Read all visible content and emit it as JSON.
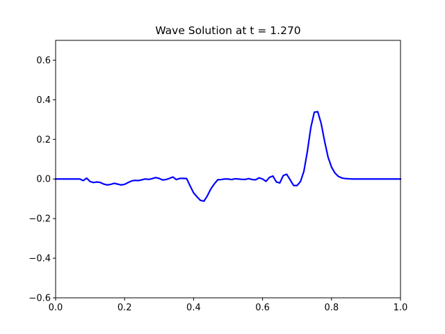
{
  "chart_data": {
    "type": "line",
    "title": "Wave Solution at t = 1.270",
    "xlabel": "",
    "ylabel": "",
    "xlim": [
      0.0,
      1.0
    ],
    "ylim": [
      -0.6,
      0.7
    ],
    "grid": false,
    "xticks": [
      0.0,
      0.2,
      0.4,
      0.6,
      0.8,
      1.0
    ],
    "xtick_labels": [
      "0.0",
      "0.2",
      "0.4",
      "0.6",
      "0.8",
      "1.0"
    ],
    "yticks": [
      -0.6,
      -0.4,
      -0.2,
      0.0,
      0.2,
      0.4,
      0.6
    ],
    "ytick_labels": [
      "−0.6",
      "−0.4",
      "−0.2",
      "0.0",
      "0.2",
      "0.4",
      "0.6"
    ],
    "series": [
      {
        "color": "#0000ff",
        "x": [
          0.0,
          0.07,
          0.08,
          0.09,
          0.1,
          0.11,
          0.12,
          0.13,
          0.14,
          0.15,
          0.16,
          0.17,
          0.18,
          0.19,
          0.2,
          0.21,
          0.22,
          0.23,
          0.24,
          0.25,
          0.26,
          0.27,
          0.28,
          0.29,
          0.3,
          0.31,
          0.32,
          0.33,
          0.34,
          0.35,
          0.36,
          0.37,
          0.38,
          0.39,
          0.4,
          0.41,
          0.42,
          0.43,
          0.44,
          0.45,
          0.46,
          0.47,
          0.48,
          0.49,
          0.5,
          0.51,
          0.52,
          0.53,
          0.54,
          0.55,
          0.56,
          0.57,
          0.58,
          0.59,
          0.6,
          0.61,
          0.62,
          0.63,
          0.64,
          0.65,
          0.66,
          0.67,
          0.68,
          0.69,
          0.7,
          0.71,
          0.72,
          0.73,
          0.74,
          0.75,
          0.76,
          0.77,
          0.78,
          0.79,
          0.8,
          0.81,
          0.82,
          0.83,
          0.84,
          0.85,
          0.86,
          0.88,
          0.9,
          1.0
        ],
        "y": [
          0.0,
          0.0,
          -0.008,
          0.004,
          -0.013,
          -0.018,
          -0.015,
          -0.018,
          -0.026,
          -0.03,
          -0.027,
          -0.022,
          -0.026,
          -0.03,
          -0.027,
          -0.018,
          -0.01,
          -0.007,
          -0.008,
          -0.004,
          0.0,
          -0.002,
          0.002,
          0.007,
          0.003,
          -0.005,
          -0.003,
          0.003,
          0.01,
          -0.003,
          0.003,
          0.003,
          0.002,
          -0.035,
          -0.07,
          -0.09,
          -0.108,
          -0.112,
          -0.085,
          -0.05,
          -0.025,
          -0.004,
          -0.003,
          0.0,
          0.0,
          -0.003,
          0.001,
          0.0,
          -0.002,
          -0.002,
          0.002,
          -0.003,
          -0.004,
          0.006,
          0.0,
          -0.012,
          0.008,
          0.015,
          -0.015,
          -0.02,
          0.017,
          0.024,
          -0.004,
          -0.033,
          -0.033,
          -0.013,
          0.04,
          0.14,
          0.26,
          0.337,
          0.34,
          0.28,
          0.19,
          0.11,
          0.06,
          0.03,
          0.013,
          0.005,
          0.002,
          0.001,
          0.0,
          0.0,
          0.0,
          0.0
        ]
      }
    ]
  }
}
